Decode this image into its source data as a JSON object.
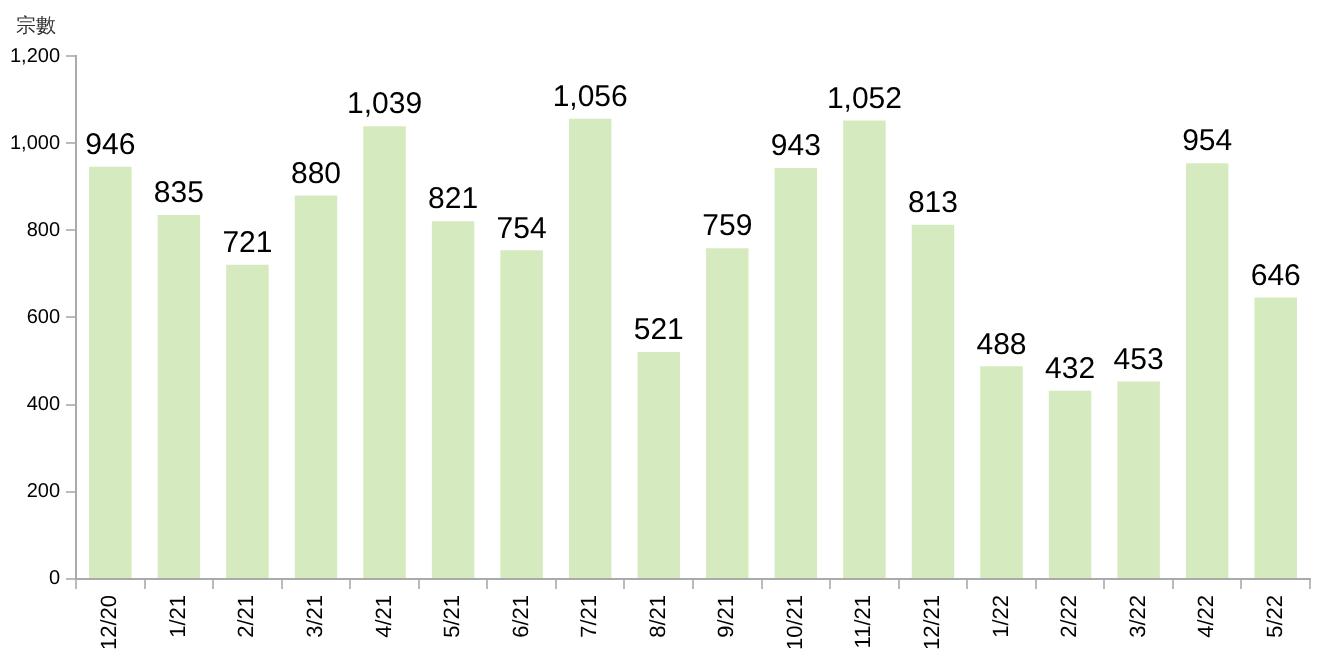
{
  "chart_data": {
    "type": "bar",
    "ylabel": "宗數",
    "categories": [
      "12/20",
      "1/21",
      "2/21",
      "3/21",
      "4/21",
      "5/21",
      "6/21",
      "7/21",
      "8/21",
      "9/21",
      "10/21",
      "11/21",
      "12/21",
      "1/22",
      "2/22",
      "3/22",
      "4/22",
      "5/22"
    ],
    "values": [
      946,
      835,
      721,
      880,
      1039,
      821,
      754,
      1056,
      521,
      759,
      943,
      1052,
      813,
      488,
      432,
      453,
      954,
      646
    ],
    "value_labels": [
      "946",
      "835",
      "721",
      "880",
      "1,039",
      "821",
      "754",
      "1,056",
      "521",
      "759",
      "943",
      "1,052",
      "813",
      "488",
      "432",
      "453",
      "954",
      "646"
    ],
    "color": "#d5ebbf",
    "ylim": [
      0,
      1200
    ],
    "yticks": [
      0,
      {
        "value": 200,
        "label": "200"
      },
      {
        "value": 400,
        "label": "400"
      },
      {
        "value": 600,
        "label": "600"
      },
      {
        "value": 800,
        "label": "800"
      },
      {
        "value": 1000,
        "label": "1,000"
      },
      {
        "value": 1200,
        "label": "1,200"
      }
    ],
    "grid": false,
    "legend": false
  }
}
